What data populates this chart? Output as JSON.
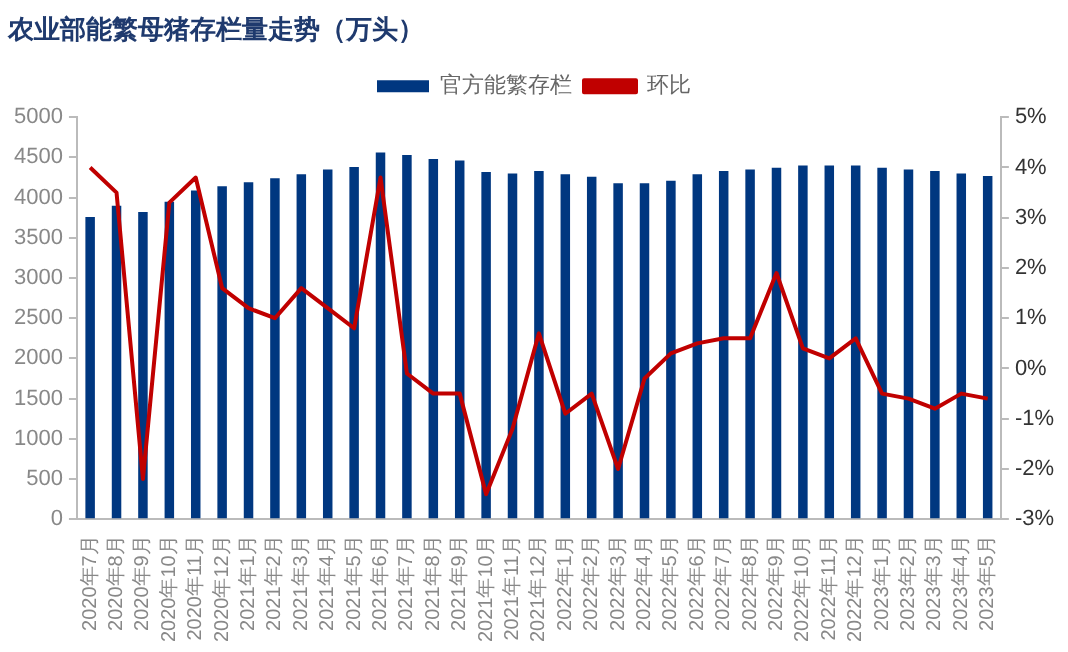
{
  "chart_data": {
    "type": "bar",
    "title": "农业部能繁母猪存栏量走势（万头）",
    "categories": [
      "2020年7月",
      "2020年8月",
      "2020年9月",
      "2020年10月",
      "2020年11月",
      "2020年12月",
      "2021年1月",
      "2021年2月",
      "2021年3月",
      "2021年4月",
      "2021年5月",
      "2021年6月",
      "2021年7月",
      "2021年8月",
      "2021年9月",
      "2021年10月",
      "2021年11月",
      "2021年12月",
      "2022年1月",
      "2022年2月",
      "2022年3月",
      "2022年4月",
      "2022年5月",
      "2022年6月",
      "2022年7月",
      "2022年8月",
      "2022年9月",
      "2022年10月",
      "2022年11月",
      "2022年12月",
      "2023年1月",
      "2023年2月",
      "2023年3月",
      "2023年4月",
      "2023年5月"
    ],
    "series": [
      {
        "name": "官方能繁存栏",
        "color": "#003780",
        "values": [
          3760,
          3900,
          3820,
          3950,
          4090,
          4140,
          4190,
          4240,
          4290,
          4350,
          4380,
          4560,
          4530,
          4480,
          4460,
          4320,
          4300,
          4330,
          4290,
          4260,
          4180,
          4180,
          4210,
          4290,
          4330,
          4350,
          4370,
          4400,
          4400,
          4400,
          4370,
          4350,
          4330,
          4300,
          4270
        ]
      },
      {
        "name": "环比",
        "type": "line",
        "axis": "y2",
        "color": "#c00000",
        "values": [
          4.0,
          3.5,
          -2.2,
          3.3,
          3.8,
          1.6,
          1.2,
          1.0,
          1.6,
          1.2,
          0.8,
          3.8,
          -0.1,
          -0.5,
          -0.5,
          -2.5,
          -1.2,
          0.7,
          -0.9,
          -0.5,
          -2.0,
          -0.2,
          0.3,
          0.5,
          0.6,
          0.6,
          1.9,
          0.4,
          0.2,
          0.6,
          -0.5,
          -0.6,
          -0.8,
          -0.5,
          -0.6
        ]
      }
    ],
    "ylim": [
      0,
      5000
    ],
    "yticks": [
      0,
      500,
      1000,
      1500,
      2000,
      2500,
      3000,
      3500,
      4000,
      4500,
      5000
    ],
    "y2lim": [
      -3,
      5
    ],
    "y2ticks": [
      {
        "value": -3,
        "label": "-3%"
      },
      {
        "value": -2,
        "label": "-2%"
      },
      {
        "value": -1,
        "label": "-1%"
      },
      {
        "value": 0,
        "label": "0%"
      },
      {
        "value": 1,
        "label": "1%"
      },
      {
        "value": 2,
        "label": "2%"
      },
      {
        "value": 3,
        "label": "3%"
      },
      {
        "value": 4,
        "label": "4%"
      },
      {
        "value": 5,
        "label": "5%"
      }
    ],
    "grid": false,
    "legend": "top",
    "marker": "none",
    "line_style": "solid"
  }
}
